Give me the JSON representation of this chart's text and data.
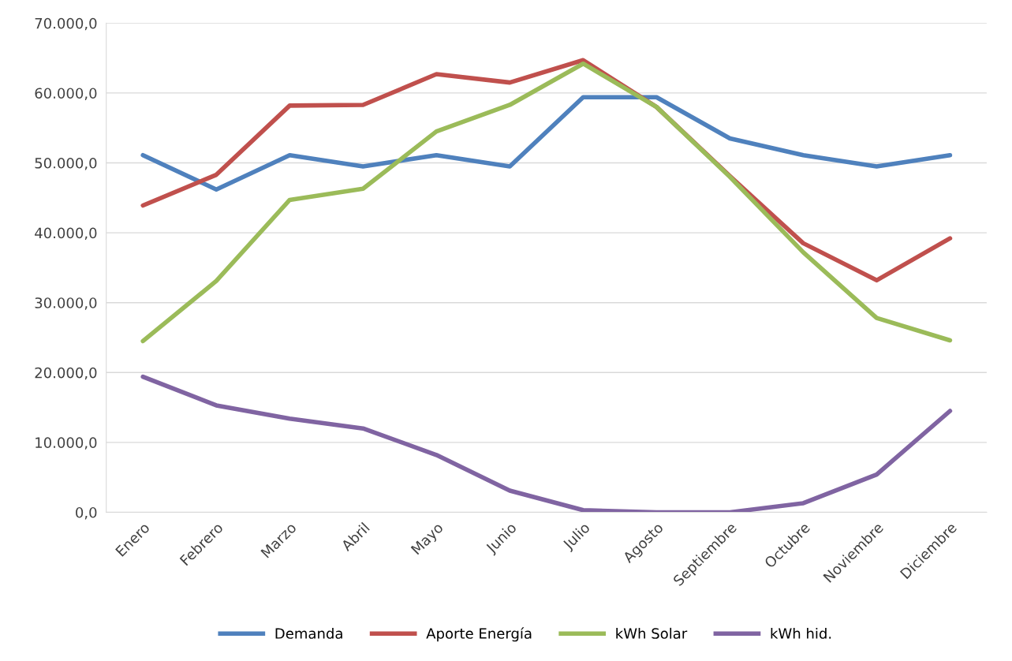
{
  "chart_data": {
    "type": "line",
    "categories": [
      "Enero",
      "Febrero",
      "Marzo",
      "Abril",
      "Mayo",
      "Junio",
      "Julio",
      "Agosto",
      "Septiembre",
      "Octubre",
      "Noviembre",
      "Diciembre"
    ],
    "series": [
      {
        "name": "Demanda",
        "color": "#4f81bd",
        "values": [
          51100,
          46200,
          51100,
          49500,
          51100,
          49500,
          59400,
          59400,
          53500,
          51100,
          49500,
          51100
        ]
      },
      {
        "name": "Aporte Energía",
        "color": "#c0504d",
        "values": [
          43900,
          48300,
          58200,
          58300,
          62700,
          61500,
          64700,
          58000,
          48100,
          38500,
          33200,
          39200
        ]
      },
      {
        "name": "kWh Solar",
        "color": "#9bbb59",
        "values": [
          24500,
          33100,
          44700,
          46300,
          54500,
          58300,
          64200,
          58000,
          48000,
          37200,
          27800,
          24600
        ]
      },
      {
        "name": "kWh hid.",
        "color": "#8064a2",
        "values": [
          19400,
          15300,
          13400,
          12000,
          8200,
          3100,
          300,
          0,
          0,
          1300,
          5400,
          14500
        ]
      }
    ],
    "ylim": [
      0,
      70000
    ],
    "yticks": [
      {
        "value": 0,
        "label": "0,0"
      },
      {
        "value": 10000,
        "label": "10.000,0"
      },
      {
        "value": 20000,
        "label": "20.000,0"
      },
      {
        "value": 30000,
        "label": "30.000,0"
      },
      {
        "value": 40000,
        "label": "40.000,0"
      },
      {
        "value": 50000,
        "label": "50.000,0"
      },
      {
        "value": 60000,
        "label": "60.000,0"
      },
      {
        "value": 70000,
        "label": "70.000,0"
      }
    ],
    "grid": "y",
    "legend": "bottom",
    "marker": "none",
    "line_style": "solid"
  }
}
